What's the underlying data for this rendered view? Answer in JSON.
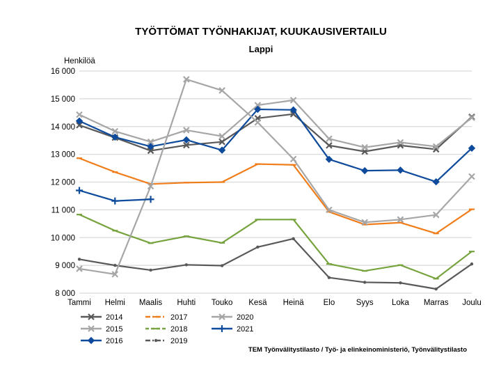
{
  "chart_data": {
    "type": "line",
    "title": "TYÖTTÖMAT TYÖNHAKIJAT, KUUKAUSIVERTAILU",
    "subtitle": "Lappi",
    "ylabel": "Henkilöä",
    "xlabel": "",
    "ylim": [
      8000,
      16000
    ],
    "yticks": [
      8000,
      9000,
      10000,
      11000,
      12000,
      13000,
      14000,
      15000,
      16000
    ],
    "ytick_labels": [
      "8 000",
      "9 000",
      "10 000",
      "11 000",
      "12 000",
      "13 000",
      "14 000",
      "15 000",
      "16 000"
    ],
    "grid": true,
    "legend_position": "bottom-left",
    "categories": [
      "Tammi",
      "Helmi",
      "Maalis",
      "Huhti",
      "Touko",
      "Kesä",
      "Heinä",
      "Elo",
      "Syys",
      "Loka",
      "Marras",
      "Joulu"
    ],
    "series": [
      {
        "name": "2014",
        "color": "#595959",
        "marker": "x",
        "dash": "solid",
        "values": [
          14050,
          13600,
          13130,
          13330,
          13450,
          14300,
          14450,
          13320,
          13100,
          13320,
          13180,
          14350
        ]
      },
      {
        "name": "2015",
        "color": "#a6a6a6",
        "marker": "x",
        "dash": "solid",
        "values": [
          14430,
          13830,
          13450,
          13870,
          13650,
          14770,
          14950,
          13560,
          13250,
          13430,
          13280,
          14320
        ]
      },
      {
        "name": "2016",
        "color": "#0e4b9c",
        "marker": "diamond",
        "dash": "solid",
        "values": [
          14200,
          13620,
          13280,
          13520,
          13150,
          14620,
          14600,
          12820,
          12410,
          12430,
          12010,
          13220
        ]
      },
      {
        "name": "2017",
        "color": "#f07d1a",
        "marker": "dash",
        "dash": "solid",
        "values": [
          12860,
          12360,
          11930,
          11980,
          12000,
          12650,
          12620,
          10930,
          10470,
          10540,
          10150,
          11020
        ]
      },
      {
        "name": "2018",
        "color": "#77a33e",
        "marker": "dash",
        "dash": "solid",
        "values": [
          10830,
          10250,
          9800,
          10050,
          9810,
          10650,
          10650,
          9050,
          8800,
          9010,
          8520,
          9500
        ]
      },
      {
        "name": "2019",
        "color": "#595959",
        "marker": "dot",
        "dash": "solid",
        "values": [
          9220,
          9000,
          8830,
          9020,
          8990,
          9660,
          9960,
          8560,
          8390,
          8370,
          8150,
          9050
        ]
      },
      {
        "name": "2020",
        "color": "#a6a6a6",
        "marker": "x",
        "dash": "solid",
        "values": [
          8880,
          8680,
          11850,
          15700,
          15300,
          14150,
          12830,
          11000,
          10550,
          10650,
          10820,
          12200
        ]
      },
      {
        "name": "2021",
        "color": "#0e4b9c",
        "marker": "plus",
        "dash": "solid",
        "values": [
          11700,
          11320,
          11380,
          null,
          null,
          null,
          null,
          null,
          null,
          null,
          null,
          null
        ]
      }
    ],
    "legend": [
      {
        "name": "2014",
        "swatch": "solid"
      },
      {
        "name": "2017",
        "swatch": "dashdot"
      },
      {
        "name": "2020",
        "swatch": "solid"
      },
      {
        "name": "2015",
        "swatch": "solid"
      },
      {
        "name": "2018",
        "swatch": "dashed"
      },
      {
        "name": "2021",
        "swatch": "solid"
      },
      {
        "name": "2016",
        "swatch": "solid"
      },
      {
        "name": "2019",
        "swatch": "dashdot"
      }
    ]
  },
  "source": "TEM Työnvälitystilasto / Työ- ja elinkeinoministeriö, Työnvälitystilasto"
}
